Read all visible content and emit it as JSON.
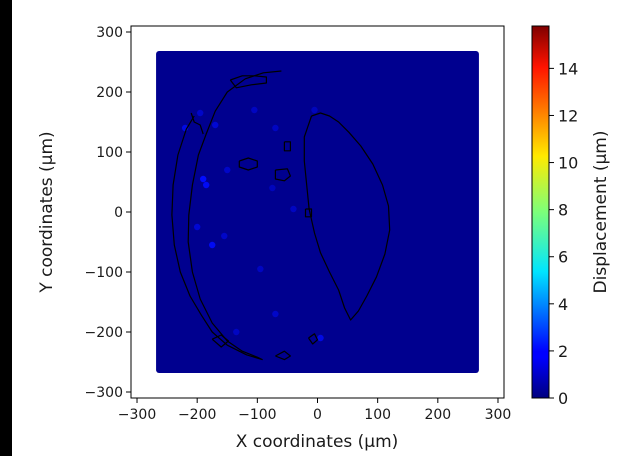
{
  "chart_data": {
    "type": "scatter",
    "title": "",
    "xlabel": "X coordinates (μm)",
    "ylabel": "Y coordinates (μm)",
    "xlim": [
      -310,
      310
    ],
    "ylim": [
      -310,
      310
    ],
    "xticks": [
      -300,
      -200,
      -100,
      0,
      100,
      200,
      300
    ],
    "yticks": [
      -300,
      -200,
      -100,
      0,
      100,
      200,
      300
    ],
    "grid": false,
    "scatter_extent": {
      "x": [
        -265,
        265
      ],
      "y": [
        -265,
        265
      ]
    },
    "marker_color": "#00008f",
    "displacement_range": [
      0,
      15.8
    ],
    "hotspots": [
      {
        "x": -190,
        "y": 55,
        "value": 2.0
      },
      {
        "x": -185,
        "y": 45,
        "value": 1.8
      },
      {
        "x": -175,
        "y": -55,
        "value": 1.8
      },
      {
        "x": -220,
        "y": 140,
        "value": 1.5
      },
      {
        "x": -170,
        "y": 145,
        "value": 1.2
      },
      {
        "x": -195,
        "y": 165,
        "value": 1.0
      },
      {
        "x": -150,
        "y": 70,
        "value": 1.0
      },
      {
        "x": -200,
        "y": -25,
        "value": 1.2
      },
      {
        "x": -155,
        "y": -40,
        "value": 1.0
      },
      {
        "x": -95,
        "y": -95,
        "value": 0.9
      },
      {
        "x": -105,
        "y": 170,
        "value": 0.9
      },
      {
        "x": -70,
        "y": 140,
        "value": 0.9
      },
      {
        "x": -40,
        "y": 5,
        "value": 0.9
      },
      {
        "x": -75,
        "y": 40,
        "value": 0.8
      },
      {
        "x": -70,
        "y": -170,
        "value": 1.0
      },
      {
        "x": 5,
        "y": -210,
        "value": 1.5
      },
      {
        "x": -5,
        "y": 170,
        "value": 0.8
      },
      {
        "x": -135,
        "y": -200,
        "value": 0.9
      }
    ],
    "contours": [
      [
        [
          -60,
          235
        ],
        [
          -90,
          232
        ],
        [
          -120,
          222
        ],
        [
          -150,
          200
        ],
        [
          -170,
          168
        ],
        [
          -185,
          130
        ],
        [
          -198,
          95
        ],
        [
          -208,
          45
        ],
        [
          -214,
          -5
        ],
        [
          -215,
          -50
        ],
        [
          -208,
          -100
        ],
        [
          -195,
          -145
        ],
        [
          -175,
          -185
        ],
        [
          -150,
          -215
        ],
        [
          -125,
          -232
        ],
        [
          -100,
          -242
        ],
        [
          -92,
          -246
        ],
        [
          -118,
          -238
        ],
        [
          -150,
          -222
        ],
        [
          -175,
          -200
        ],
        [
          -193,
          -172
        ],
        [
          -212,
          -140
        ],
        [
          -228,
          -100
        ],
        [
          -238,
          -55
        ],
        [
          -242,
          -5
        ],
        [
          -240,
          45
        ],
        [
          -232,
          95
        ],
        [
          -218,
          138
        ],
        [
          -205,
          160
        ]
      ],
      [
        [
          -210,
          165
        ],
        [
          -205,
          150
        ],
        [
          -195,
          145
        ],
        [
          -190,
          130
        ]
      ],
      [
        [
          -10,
          160
        ],
        [
          5,
          165
        ],
        [
          20,
          160
        ],
        [
          35,
          150
        ],
        [
          52,
          133
        ],
        [
          72,
          110
        ],
        [
          92,
          80
        ],
        [
          108,
          45
        ],
        [
          118,
          10
        ],
        [
          120,
          -30
        ],
        [
          112,
          -70
        ],
        [
          98,
          -108
        ],
        [
          82,
          -140
        ],
        [
          68,
          -165
        ],
        [
          55,
          -180
        ],
        [
          45,
          -160
        ],
        [
          35,
          -130
        ],
        [
          20,
          -100
        ],
        [
          5,
          -68
        ],
        [
          -5,
          -35
        ],
        [
          -14,
          5
        ],
        [
          -18,
          45
        ],
        [
          -22,
          85
        ],
        [
          -22,
          125
        ],
        [
          -10,
          160
        ]
      ],
      [
        [
          -55,
          117
        ],
        [
          -45,
          117
        ],
        [
          -45,
          102
        ],
        [
          -55,
          102
        ],
        [
          -55,
          117
        ]
      ],
      [
        [
          -130,
          85
        ],
        [
          -115,
          90
        ],
        [
          -100,
          85
        ],
        [
          -100,
          75
        ],
        [
          -115,
          70
        ],
        [
          -130,
          75
        ],
        [
          -130,
          85
        ]
      ],
      [
        [
          -70,
          70
        ],
        [
          -50,
          72
        ],
        [
          -45,
          60
        ],
        [
          -55,
          52
        ],
        [
          -70,
          55
        ],
        [
          -70,
          70
        ]
      ],
      [
        [
          -20,
          5
        ],
        [
          -10,
          5
        ],
        [
          -10,
          -8
        ],
        [
          -20,
          -8
        ],
        [
          -20,
          5
        ]
      ],
      [
        [
          -70,
          -240
        ],
        [
          -55,
          -232
        ],
        [
          -45,
          -240
        ],
        [
          -55,
          -246
        ],
        [
          -70,
          -240
        ]
      ],
      [
        [
          -15,
          -210
        ],
        [
          -5,
          -203
        ],
        [
          0,
          -213
        ],
        [
          -8,
          -220
        ],
        [
          -15,
          -210
        ]
      ],
      [
        [
          -145,
          220
        ],
        [
          -125,
          227
        ],
        [
          -105,
          227
        ],
        [
          -85,
          225
        ],
        [
          -85,
          215
        ],
        [
          -110,
          212
        ],
        [
          -135,
          207
        ],
        [
          -145,
          220
        ]
      ],
      [
        [
          -175,
          -212
        ],
        [
          -160,
          -205
        ],
        [
          -148,
          -215
        ],
        [
          -160,
          -225
        ],
        [
          -175,
          -212
        ]
      ]
    ],
    "colorbar": {
      "label": "Displacement (μm)",
      "min": 0,
      "max": 15.8,
      "ticks": [
        0,
        2,
        4,
        6,
        8,
        10,
        12,
        14
      ],
      "colormap": "jet"
    }
  }
}
